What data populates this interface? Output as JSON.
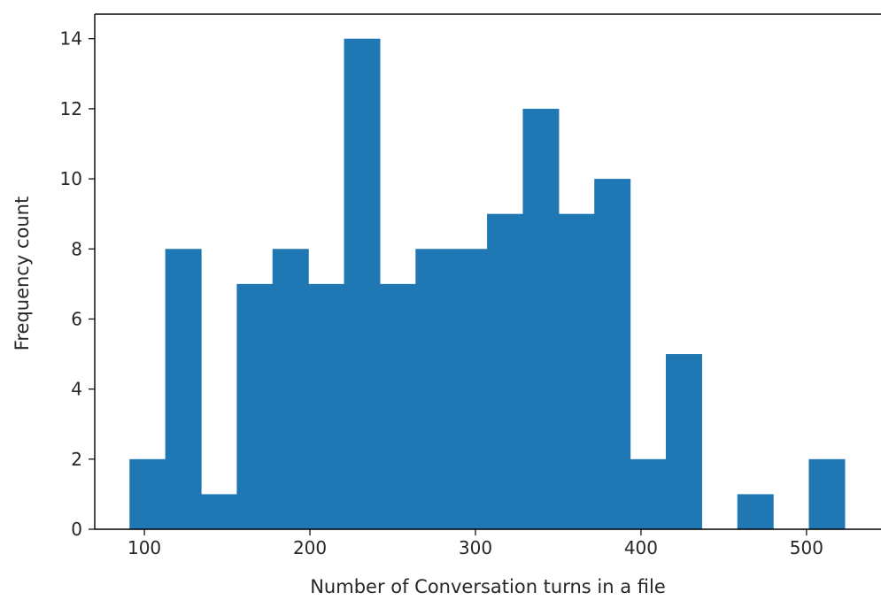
{
  "chart_data": {
    "type": "bar",
    "subtype": "histogram",
    "title": "",
    "xlabel": "Number of Conversation turns in a file",
    "ylabel": "Frequency count",
    "xlim": [
      70,
      545
    ],
    "ylim": [
      0,
      14.7
    ],
    "x_ticks": [
      100,
      200,
      300,
      400,
      500
    ],
    "y_ticks": [
      0,
      2,
      4,
      6,
      8,
      10,
      12,
      14
    ],
    "bin_edges": [
      91,
      112.6,
      134.2,
      155.8,
      177.4,
      199,
      220.6,
      242.2,
      263.8,
      285.4,
      307,
      328.6,
      350.2,
      371.8,
      393.4,
      415,
      436.6,
      458.2,
      479.8,
      501.4,
      523
    ],
    "values": [
      2,
      8,
      1,
      7,
      8,
      7,
      14,
      7,
      8,
      8,
      9,
      12,
      9,
      10,
      2,
      5,
      0,
      1,
      0,
      2
    ],
    "bar_color": "#1f77b4",
    "grid": false,
    "legend": "none"
  }
}
